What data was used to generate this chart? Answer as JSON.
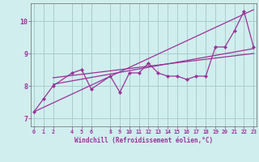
{
  "xlabel": "Windchill (Refroidissement éolien,°C)",
  "x_data": [
    0,
    1,
    2,
    4,
    5,
    6,
    8,
    9,
    10,
    11,
    12,
    13,
    14,
    15,
    16,
    17,
    18,
    19,
    20,
    21,
    22,
    23
  ],
  "y_data": [
    7.2,
    7.6,
    8.0,
    8.4,
    8.5,
    7.9,
    8.3,
    7.8,
    8.4,
    8.4,
    8.7,
    8.4,
    8.3,
    8.3,
    8.2,
    8.3,
    8.3,
    9.2,
    9.2,
    9.7,
    10.3,
    9.2
  ],
  "line_color": "#993399",
  "bg_color": "#d0eeee",
  "grid_color": "#aacccc",
  "ylim": [
    6.75,
    10.55
  ],
  "xlim": [
    -0.3,
    23.3
  ],
  "yticks": [
    7,
    8,
    9,
    10
  ],
  "xticks": [
    0,
    1,
    2,
    4,
    5,
    6,
    8,
    9,
    10,
    11,
    12,
    13,
    14,
    15,
    16,
    17,
    18,
    19,
    20,
    21,
    22,
    23
  ],
  "regression_lines": [
    {
      "start_x": 0,
      "start_y": 7.2,
      "end_x": 23,
      "end_y": 10.35
    },
    {
      "start_x": 2,
      "start_y": 8.05,
      "end_x": 23,
      "end_y": 9.15
    },
    {
      "start_x": 2,
      "start_y": 8.25,
      "end_x": 23,
      "end_y": 9.0
    }
  ]
}
